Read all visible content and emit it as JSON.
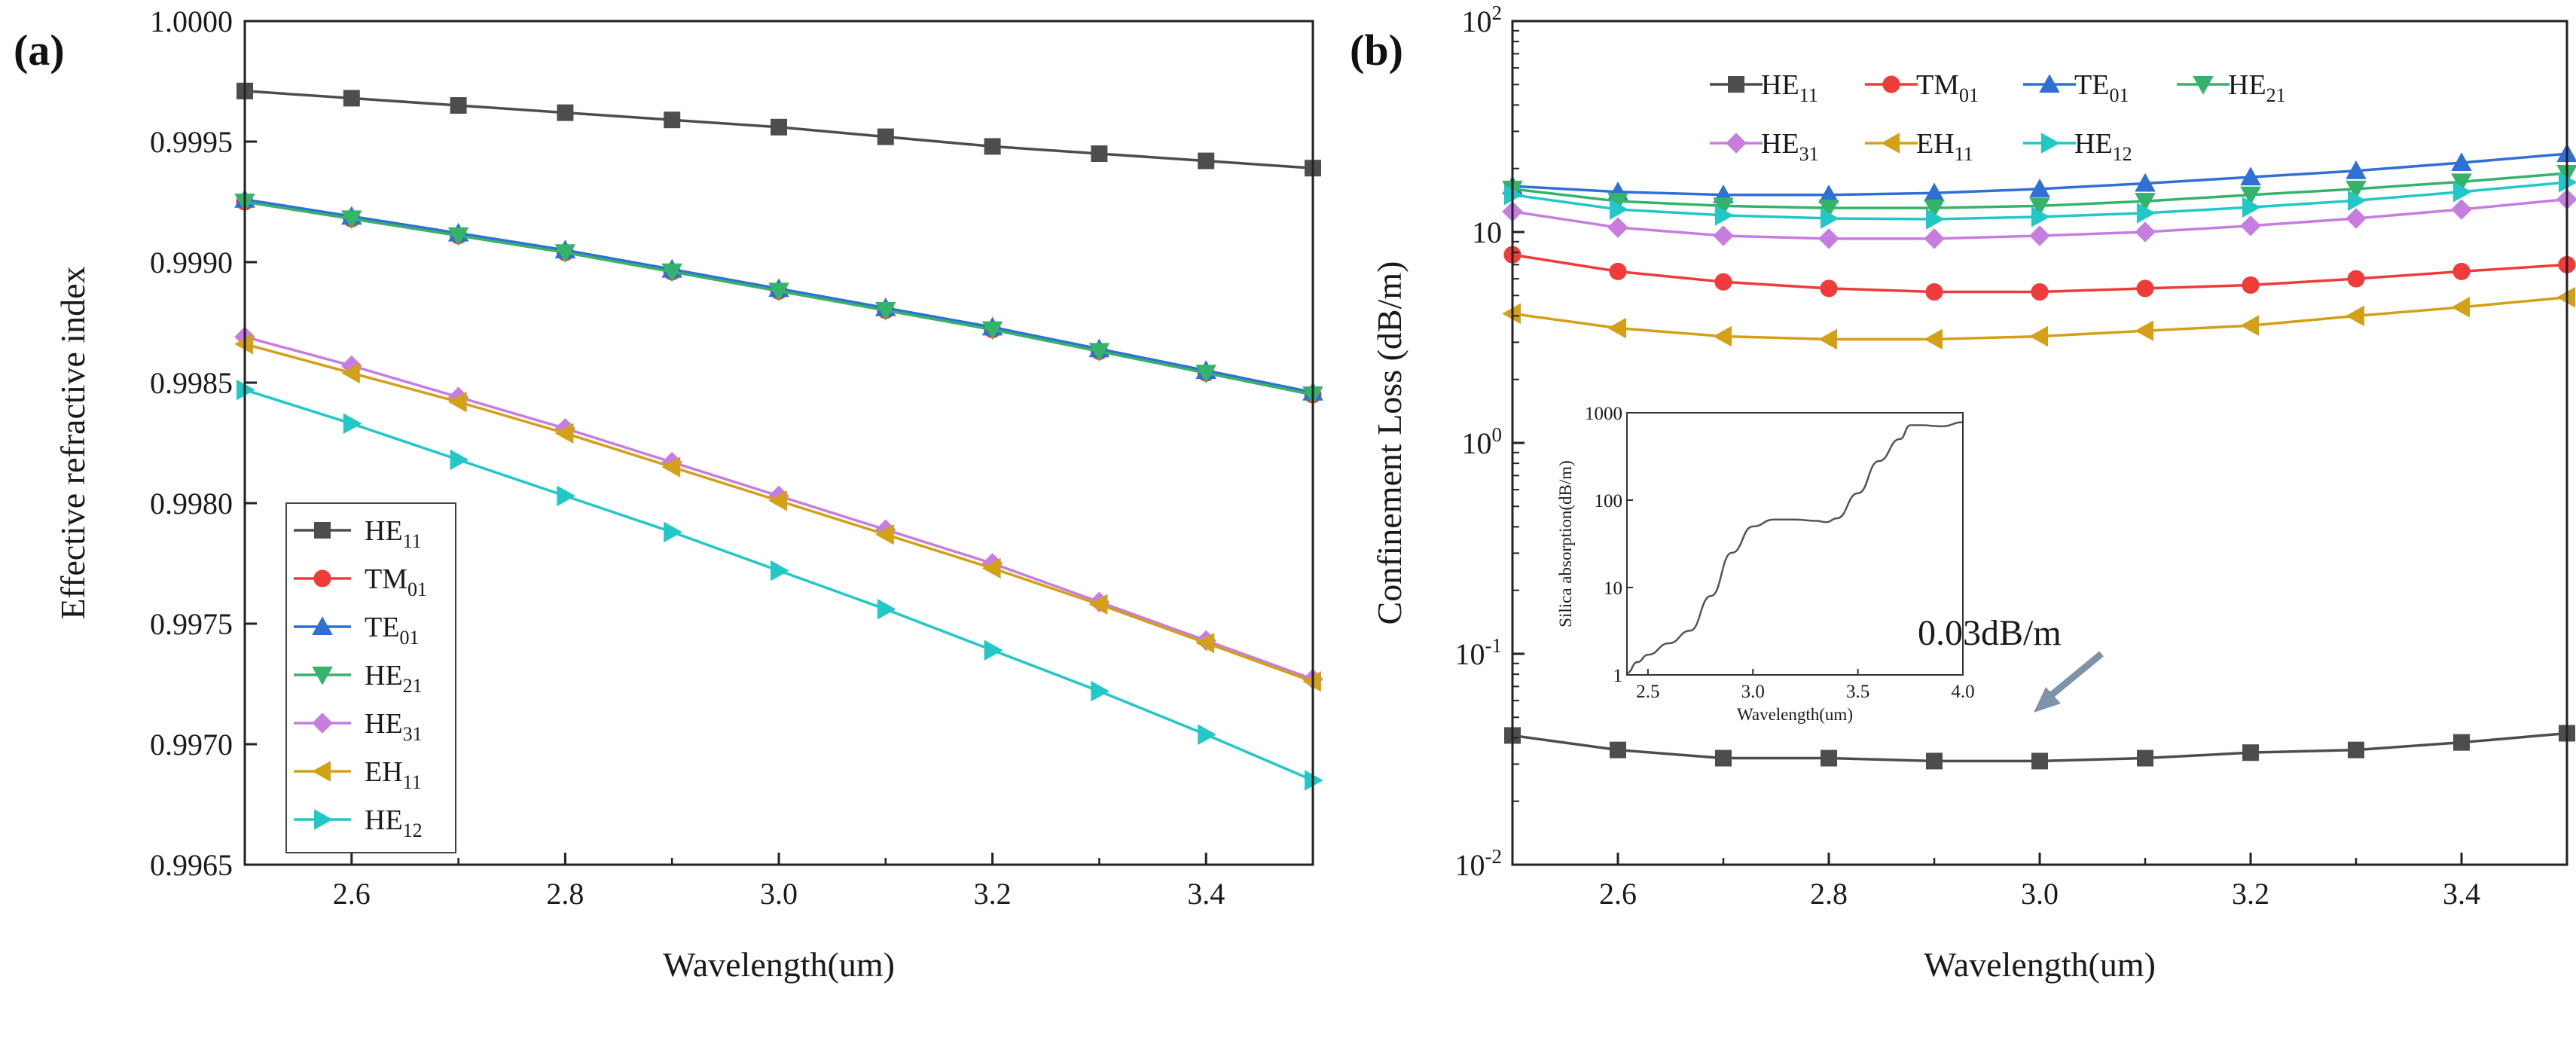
{
  "figure": {
    "colors": {
      "HE11": "#4d4d4d",
      "TM01": "#ef3b39",
      "TE01": "#2f6fd6",
      "HE21": "#35b36a",
      "HE31": "#c77de0",
      "EH11": "#d4a017",
      "HE12": "#22c7c7"
    },
    "markers": {
      "HE11": "square",
      "TM01": "circle",
      "TE01": "triangle-up",
      "HE21": "triangle-down",
      "HE31": "diamond",
      "EH11": "triangle-left",
      "HE12": "triangle-right"
    }
  },
  "chart_data": [
    {
      "panel_label": "(a)",
      "type": "line",
      "xlabel": "Wavelength(um)",
      "ylabel": "Effective refractive index",
      "xlim": [
        2.5,
        3.5
      ],
      "ylim": [
        0.9965,
        1.0
      ],
      "xticks": [
        "2.6",
        "2.8",
        "3.0",
        "3.2",
        "3.4"
      ],
      "yticks": [
        "0.9965",
        "0.9970",
        "0.9975",
        "0.9980",
        "0.9985",
        "0.9990",
        "0.9995",
        "1.0000"
      ],
      "legend_position": "bottom-left",
      "x": [
        2.5,
        2.6,
        2.7,
        2.8,
        2.9,
        3.0,
        3.1,
        3.2,
        3.3,
        3.4,
        3.5
      ],
      "series": [
        {
          "key": "HE11",
          "name": "HE",
          "sub": "11",
          "values": [
            0.99971,
            0.99968,
            0.99965,
            0.99962,
            0.99959,
            0.99956,
            0.99952,
            0.99948,
            0.99945,
            0.99942,
            0.99939
          ]
        },
        {
          "key": "TM01",
          "name": "TM",
          "sub": "01",
          "values": [
            0.99925,
            0.99918,
            0.99911,
            0.99904,
            0.99896,
            0.99888,
            0.9988,
            0.99872,
            0.99863,
            0.99854,
            0.99845
          ]
        },
        {
          "key": "TE01",
          "name": "TE",
          "sub": "01",
          "values": [
            0.99926,
            0.99919,
            0.99912,
            0.99905,
            0.99897,
            0.99889,
            0.99881,
            0.99873,
            0.99864,
            0.99855,
            0.99846
          ]
        },
        {
          "key": "HE21",
          "name": "HE",
          "sub": "21",
          "values": [
            0.99925,
            0.99918,
            0.99911,
            0.99904,
            0.99896,
            0.99888,
            0.9988,
            0.99872,
            0.99863,
            0.99854,
            0.99845
          ]
        },
        {
          "key": "HE31",
          "name": "HE",
          "sub": "31",
          "values": [
            0.99869,
            0.99857,
            0.99844,
            0.99831,
            0.99817,
            0.99803,
            0.99789,
            0.99775,
            0.99759,
            0.99743,
            0.99727
          ]
        },
        {
          "key": "EH11",
          "name": "EH",
          "sub": "11",
          "values": [
            0.99866,
            0.99854,
            0.99842,
            0.99829,
            0.99815,
            0.99801,
            0.99787,
            0.99773,
            0.99758,
            0.99742,
            0.99726
          ]
        },
        {
          "key": "HE12",
          "name": "HE",
          "sub": "12",
          "values": [
            0.99847,
            0.99833,
            0.99818,
            0.99803,
            0.99788,
            0.99772,
            0.99756,
            0.99739,
            0.99722,
            0.99704,
            0.99685
          ]
        }
      ]
    },
    {
      "panel_label": "(b)",
      "type": "line",
      "yscale": "log",
      "xlabel": "Wavelength(um)",
      "ylabel": "Confinement Loss (dB/m)",
      "xlim": [
        2.5,
        3.5
      ],
      "ylim": [
        0.01,
        100
      ],
      "xticks": [
        "2.6",
        "2.8",
        "3.0",
        "3.2",
        "3.4"
      ],
      "yticks": [
        {
          "value": 100,
          "base": "10",
          "exp": "2"
        },
        {
          "value": 10,
          "base": "10",
          "exp": ""
        },
        {
          "value": 1,
          "base": "10",
          "exp": "0"
        },
        {
          "value": 0.1,
          "base": "10",
          "exp": "-1"
        },
        {
          "value": 0.01,
          "base": "10",
          "exp": "-2"
        }
      ],
      "legend_position": "top, inside",
      "annotation": {
        "text": "0.03dB/m",
        "points_to": {
          "x": 2.9,
          "y": 0.03
        }
      },
      "x": [
        2.5,
        2.6,
        2.7,
        2.8,
        2.9,
        3.0,
        3.1,
        3.2,
        3.3,
        3.4,
        3.5
      ],
      "series": [
        {
          "key": "HE11",
          "name": "HE",
          "sub": "11",
          "values": [
            0.041,
            0.035,
            0.032,
            0.032,
            0.031,
            0.031,
            0.032,
            0.034,
            0.035,
            0.038,
            0.042
          ]
        },
        {
          "key": "TM01",
          "name": "TM",
          "sub": "01",
          "values": [
            7.8,
            6.5,
            5.8,
            5.4,
            5.2,
            5.2,
            5.4,
            5.6,
            6.0,
            6.5,
            7.0
          ]
        },
        {
          "key": "TE01",
          "name": "TE",
          "sub": "01",
          "values": [
            16.5,
            15.5,
            15.0,
            15.0,
            15.3,
            16.0,
            17.0,
            18.2,
            19.5,
            21.3,
            23.5
          ]
        },
        {
          "key": "HE21",
          "name": "HE",
          "sub": "21",
          "values": [
            16.0,
            14.0,
            13.3,
            13.0,
            13.0,
            13.3,
            14.0,
            15.0,
            16.0,
            17.3,
            19.0
          ]
        },
        {
          "key": "HE31",
          "name": "HE",
          "sub": "31",
          "values": [
            12.5,
            10.5,
            9.6,
            9.3,
            9.3,
            9.6,
            10.0,
            10.7,
            11.6,
            12.8,
            14.3
          ]
        },
        {
          "key": "EH11",
          "name": "EH",
          "sub": "11",
          "values": [
            4.1,
            3.5,
            3.2,
            3.1,
            3.1,
            3.2,
            3.4,
            3.6,
            4.0,
            4.4,
            4.9
          ]
        },
        {
          "key": "HE12",
          "name": "HE",
          "sub": "12",
          "values": [
            15.0,
            12.8,
            12.0,
            11.6,
            11.5,
            11.8,
            12.3,
            13.1,
            14.1,
            15.5,
            17.2
          ]
        }
      ],
      "inset": {
        "type": "line",
        "yscale": "log",
        "xlabel": "Wavelength(um)",
        "ylabel": "Silica absorption(dB/m)",
        "xlim": [
          2.4,
          4.0
        ],
        "ylim": [
          1,
          1000
        ],
        "xticks": [
          "2.5",
          "3.0",
          "3.5",
          "4.0"
        ],
        "yticks": [
          "1",
          "10",
          "100",
          "1000"
        ],
        "x": [
          2.4,
          2.45,
          2.5,
          2.6,
          2.7,
          2.8,
          2.9,
          3.0,
          3.1,
          3.2,
          3.3,
          3.35,
          3.4,
          3.5,
          3.6,
          3.7,
          3.75,
          3.8,
          3.9,
          4.0
        ],
        "values": [
          1.05,
          1.4,
          1.7,
          2.3,
          3.2,
          8,
          25,
          50,
          60,
          60,
          58,
          56,
          62,
          120,
          280,
          500,
          720,
          720,
          700,
          780
        ]
      }
    }
  ]
}
